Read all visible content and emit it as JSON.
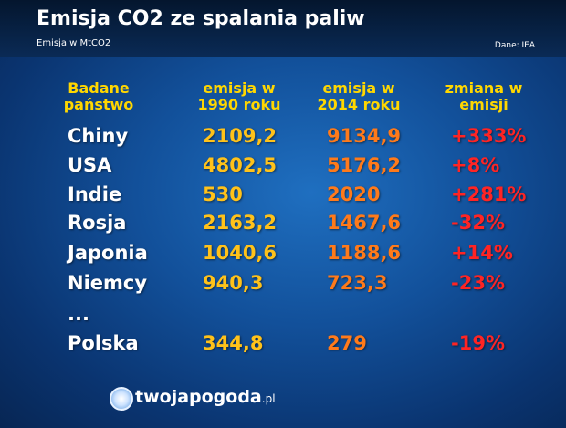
{
  "header": {
    "title": "Emisja CO2 ze spalania paliw",
    "subtitle": "Emisja w MtCO2",
    "source": "Dane: IEA"
  },
  "table": {
    "columns": [
      [
        "Badane",
        "państwo"
      ],
      [
        "emisja w",
        "1990 roku"
      ],
      [
        "emisja w",
        "2014 roku"
      ],
      [
        "zmiana w",
        "emisji"
      ]
    ],
    "rows": [
      [
        "Chiny",
        "2109,2",
        "9134,9",
        "+333%"
      ],
      [
        "USA",
        "4802,5",
        "5176,2",
        "+8%"
      ],
      [
        "Indie",
        "530",
        "2020",
        "+281%"
      ],
      [
        "Rosja",
        "2163,2",
        "1467,6",
        "-32%"
      ],
      [
        "Japonia",
        "1040,6",
        "1188,6",
        "+14%"
      ],
      [
        "Niemcy",
        "940,3",
        "723,3",
        "-23%"
      ],
      [
        "..."
      ],
      [
        "Polska",
        "344,8",
        "279",
        "-19%"
      ]
    ]
  },
  "footer": {
    "brand": "twojapogoda",
    "domain": ".pl"
  }
}
